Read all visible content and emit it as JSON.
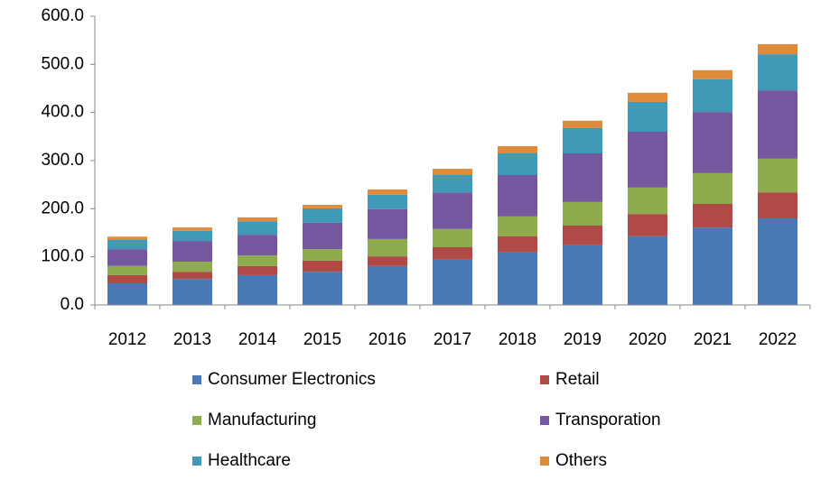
{
  "chart_data": {
    "type": "stacked_bar",
    "categories": [
      "2012",
      "2013",
      "2014",
      "2015",
      "2016",
      "2017",
      "2018",
      "2019",
      "2020",
      "2021",
      "2022"
    ],
    "series": [
      {
        "name": "Consumer Electronics",
        "color": "#4a7ab5",
        "values": [
          45,
          54,
          62,
          69,
          81,
          94,
          109,
          124,
          143,
          161,
          180
        ]
      },
      {
        "name": "Retail",
        "color": "#b04a46",
        "values": [
          17,
          15,
          19,
          23,
          20,
          26,
          34,
          41,
          46,
          49,
          54
        ]
      },
      {
        "name": "Manufacturing",
        "color": "#8eab4e",
        "values": [
          19,
          21,
          22,
          24,
          36,
          38,
          41,
          49,
          55,
          64,
          70
        ]
      },
      {
        "name": "Transporation",
        "color": "#7559a0",
        "values": [
          35,
          43,
          43,
          55,
          62,
          76,
          86,
          101,
          116,
          127,
          142
        ]
      },
      {
        "name": "Healthcare",
        "color": "#3f9ab8",
        "values": [
          19,
          21,
          28,
          30,
          30,
          36,
          45,
          53,
          62,
          68,
          75
        ]
      },
      {
        "name": "Others",
        "color": "#e08a3c",
        "values": [
          7,
          7,
          8,
          7,
          11,
          13,
          15,
          15,
          19,
          19,
          21
        ]
      }
    ],
    "ylim": [
      0,
      600
    ],
    "yticks": [
      {
        "value": 0,
        "label": "0.0"
      },
      {
        "value": 100,
        "label": "100.0"
      },
      {
        "value": 200,
        "label": "200.0"
      },
      {
        "value": 300,
        "label": "300.0"
      },
      {
        "value": 400,
        "label": "400.0"
      },
      {
        "value": 500,
        "label": "500.0"
      },
      {
        "value": 600,
        "label": "600.0"
      }
    ],
    "grid": false,
    "legend": "bottom"
  }
}
